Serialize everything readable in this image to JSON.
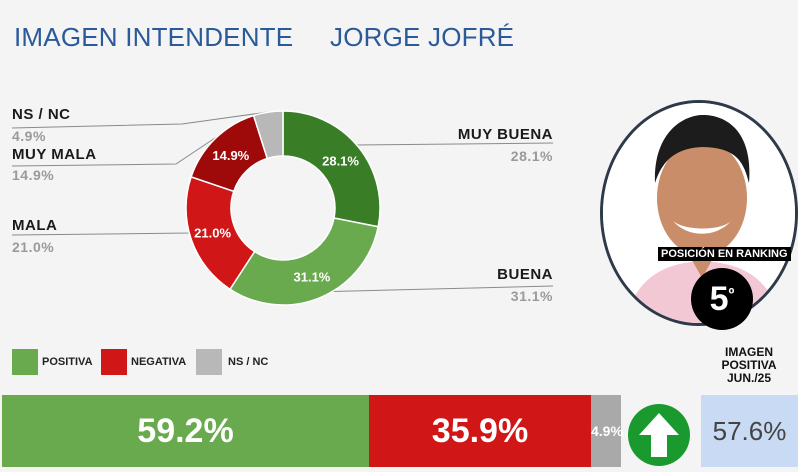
{
  "header": {
    "title_left": "IMAGEN INTENDENTE",
    "title_right": "JORGE JOFRÉ"
  },
  "chart_data": {
    "type": "pie",
    "style": "donut",
    "slices": [
      {
        "label": "MUY BUENA",
        "value": 28.1,
        "display": "28.1%",
        "color": "#3a7d27"
      },
      {
        "label": "BUENA",
        "value": 31.1,
        "display": "31.1%",
        "color": "#6aaa4e"
      },
      {
        "label": "MALA",
        "value": 21.0,
        "display": "21.0%",
        "color": "#d01616"
      },
      {
        "label": "MUY MALA",
        "value": 14.9,
        "display": "14.9%",
        "color": "#9e0a0a"
      },
      {
        "label": "NS / NC",
        "value": 4.9,
        "display": "4.9%",
        "color": "#b8b8b8"
      }
    ],
    "legend": [
      {
        "label": "POSITIVA",
        "color": "#6aaa4e"
      },
      {
        "label": "NEGATIVA",
        "color": "#d01616"
      },
      {
        "label": "NS / NC",
        "color": "#b8b8b8"
      }
    ],
    "summary_bar": [
      {
        "label": "POSITIVA",
        "value": 59.2,
        "display": "59.2%",
        "color": "#6aaa4e"
      },
      {
        "label": "NEGATIVA",
        "value": 35.9,
        "display": "35.9%",
        "color": "#d01616"
      },
      {
        "label": "NS / NC",
        "value": 4.9,
        "display": "4.9%",
        "color": "#a9a9a9"
      }
    ]
  },
  "ranking": {
    "label": "POSICIÓN EN RANKING",
    "position": "5",
    "suffix": "º"
  },
  "previous": {
    "label_line1": "IMAGEN",
    "label_line2": "POSITIVA",
    "label_line3": "JUN./25",
    "value": "57.6%",
    "trend_icon": "arrow-up-icon",
    "trend_color": "#1a9a2e"
  }
}
